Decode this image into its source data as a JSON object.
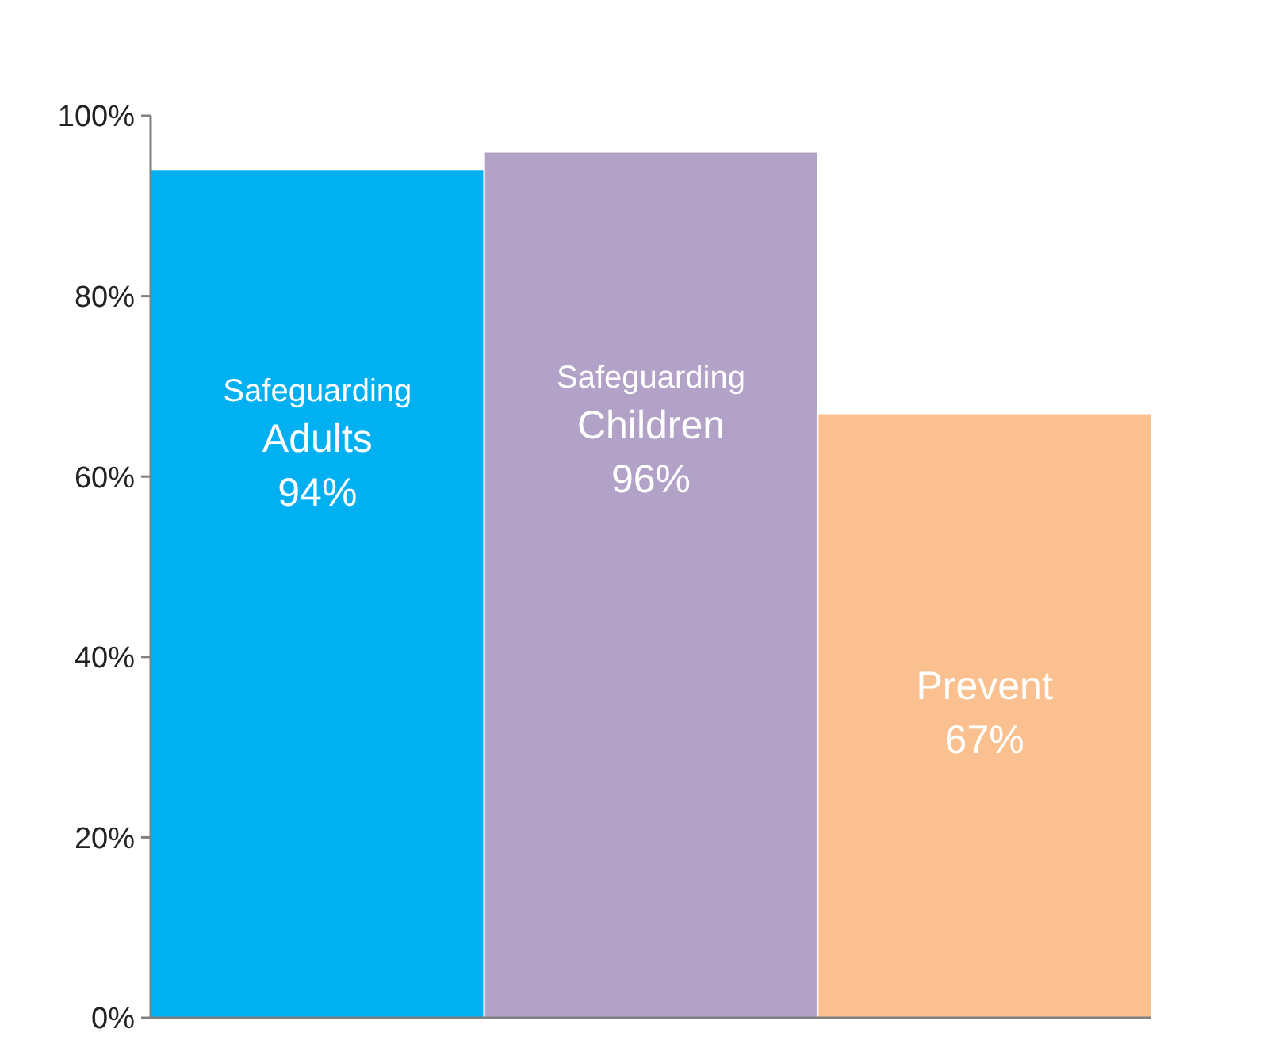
{
  "chart_data": {
    "type": "bar",
    "categories": [
      "Safeguarding Adults",
      "Safeguarding Children",
      "Prevent"
    ],
    "values": [
      94,
      96,
      67
    ],
    "colors": [
      "#00b0f0",
      "#b3a2c7",
      "#fac090"
    ],
    "value_labels": [
      "94%",
      "96%",
      "67%"
    ],
    "ylim": [
      0,
      100
    ],
    "yticks": [
      {
        "value": 0,
        "label": "0%"
      },
      {
        "value": 20,
        "label": "20%"
      },
      {
        "value": 40,
        "label": "40%"
      },
      {
        "value": 60,
        "label": "60%"
      },
      {
        "value": 80,
        "label": "80%"
      },
      {
        "value": 100,
        "label": "100%"
      }
    ]
  }
}
